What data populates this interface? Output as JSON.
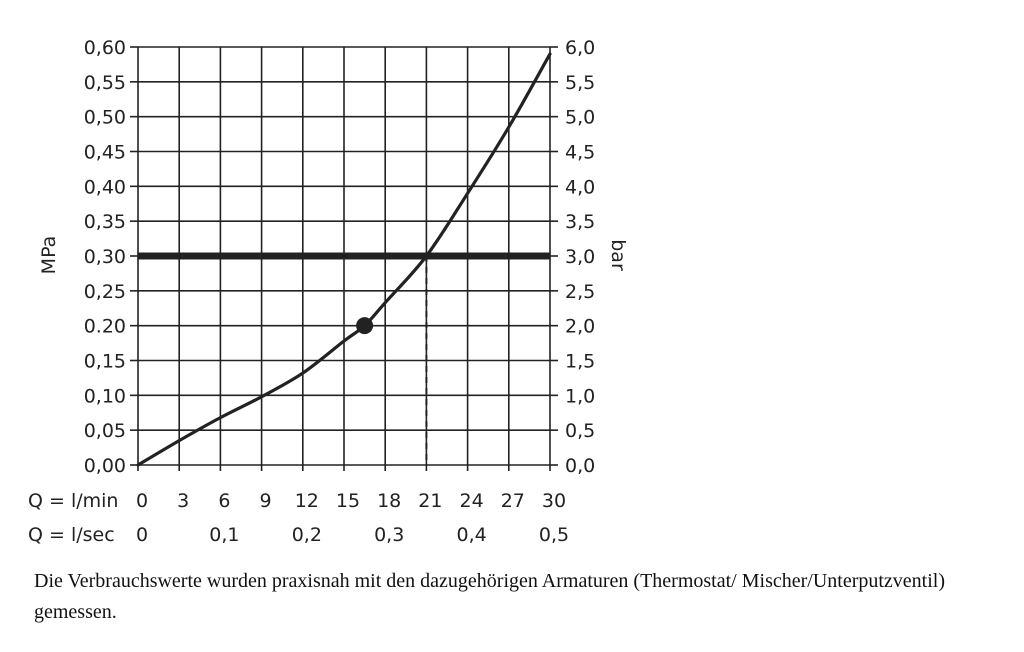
{
  "chart_data": {
    "type": "line",
    "x_primary": {
      "label": "Q = l/min",
      "ticks": [
        0,
        3,
        6,
        9,
        12,
        15,
        18,
        21,
        24,
        27,
        30
      ],
      "tick_labels": [
        "0",
        "3",
        "6",
        "9",
        "12",
        "15",
        "18",
        "21",
        "24",
        "27",
        "30"
      ],
      "range": [
        0,
        30
      ]
    },
    "x_secondary": {
      "label": "Q = l/sec",
      "ticks": [
        0,
        0.1,
        0.2,
        0.3,
        0.4,
        0.5
      ],
      "tick_labels": [
        "0",
        "0,1",
        "0,2",
        "0,3",
        "0,4",
        "0,5"
      ],
      "range": [
        0,
        0.5
      ]
    },
    "y_left": {
      "label": "MPa",
      "range": [
        0,
        0.6
      ],
      "ticks": [
        0,
        0.05,
        0.1,
        0.15,
        0.2,
        0.25,
        0.3,
        0.35,
        0.4,
        0.45,
        0.5,
        0.55,
        0.6
      ],
      "tick_labels": [
        "0,00",
        "0,05",
        "0,10",
        "0,15",
        "0.20",
        "0,25",
        "0,30",
        "0,35",
        "0,40",
        "0,45",
        "0,50",
        "0,55",
        "0,60"
      ]
    },
    "y_right": {
      "label": "bar",
      "range": [
        0,
        6
      ],
      "ticks": [
        0,
        0.5,
        1,
        1.5,
        2,
        2.5,
        3,
        3.5,
        4,
        4.5,
        5,
        5.5,
        6
      ],
      "tick_labels": [
        "0,0",
        "0,5",
        "1,0",
        "1,5",
        "2,0",
        "2,5",
        "3,0",
        "3,5",
        "4,0",
        "4,5",
        "5,0",
        "5,5",
        "6,0"
      ]
    },
    "grid": true,
    "series": [
      {
        "x": [
          0,
          3,
          6,
          9,
          12,
          15,
          16.5,
          18,
          21,
          24,
          27,
          30
        ],
        "y": [
          0,
          0.035,
          0.068,
          0.098,
          0.132,
          0.178,
          0.2,
          0.233,
          0.3,
          0.39,
          0.485,
          0.59
        ]
      }
    ],
    "reference_line": {
      "y": 0.3,
      "style": "thick"
    },
    "marker_point": {
      "x": 16.5,
      "y": 0.2
    },
    "dashed_drop": {
      "x": 21,
      "from_y": 0.3,
      "to_y": 0
    },
    "colors": {
      "line": "#222222",
      "grid": "#222222"
    }
  },
  "caption": "Die Verbrauchswerte wurden praxisnah mit den dazugehörigen Armaturen (Thermostat/ Mischer/Unterputzventil) gemessen."
}
